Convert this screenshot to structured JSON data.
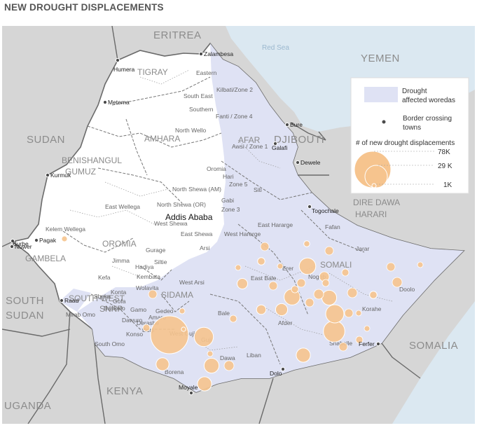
{
  "title": "NEW DROUGHT DISPLACEMENTS",
  "colors": {
    "land": "#d6d6d6",
    "sea": "#dbe8f1",
    "ethiopia": "#ffffff",
    "drought": "#dfe2f4",
    "bubble_fill": "#f6c48e",
    "bubble_stroke": "#ffffff",
    "border": "#6a6a6a"
  },
  "countries": [
    "ERITREA",
    "YEMEN",
    "SUDAN",
    "DJIBOUTI",
    "SOUTH",
    "SUDAN",
    "SOMALIA",
    "KENYA",
    "UGANDA"
  ],
  "sea_label": "Red Sea",
  "capital": "Addis Ababa",
  "regions": [
    "TIGRAY",
    "AMHARA",
    "AFAR",
    "BENISHANGUL",
    "GUMUZ",
    "OROMIA",
    "GAMBELA",
    "SNNP",
    "SIDAMA",
    "SOMALI",
    "DIRE DAWA",
    "HARARI",
    "SOUTH WEST"
  ],
  "zones": [
    "Eastern",
    "Kilbati/Zone 2",
    "South East",
    "Southern",
    "Fanti / Zone 4",
    "North Wello",
    "Awsi / Zone 1",
    "Oromia",
    "Hari",
    "Zone 5",
    "Siti",
    "North Shewa (AM)",
    "Gabi",
    "Zone 3",
    "East Wellega",
    "North Shewa (OR)",
    "West Shewa",
    "East Shewa",
    "West Harerge",
    "East Hararge",
    "Fafan",
    "Kelem Wellega",
    "Jarar",
    "Gurage",
    "Arsi",
    "Jimma",
    "Hadiya",
    "Siltie",
    "Erer",
    "Nogob",
    "Kefa",
    "Kembata",
    "West Arsi",
    "East Bale",
    "Doolo",
    "Konta",
    "Wolayita",
    "Sheka",
    "Gofa",
    "Basketo",
    "Gamo",
    "Gedeo",
    "Bale",
    "Korahe",
    "Mirab Omo",
    "Dawuro",
    "Derashe",
    "Burji",
    "Amaro",
    "Afder",
    "West Guji",
    "Guji",
    "Konso",
    "Shabelle",
    "South Omo",
    "Liban",
    "Dawa",
    "Borena"
  ],
  "towns": [
    "Zalambesa",
    "Humera",
    "Metema",
    "Bure",
    "Galafi",
    "Kurmuk",
    "Dewele",
    "Togochale",
    "Burbe",
    "Pagak",
    "Nuwer",
    "Raad",
    "Ferfer",
    "Dolo",
    "Moyale"
  ],
  "legend": {
    "drought_label_1": "Drought",
    "drought_label_2": "affected woredas",
    "border_label_1": "Border crossing",
    "border_label_2": "towns",
    "size_title": "# of new drought displacements",
    "size_values": [
      "78K",
      "29 K",
      "1K"
    ]
  },
  "bubbles": [
    {
      "zone": "West Guji",
      "value": 78000
    },
    {
      "zone": "Guji",
      "value": 20000
    },
    {
      "zone": "Dawa",
      "value": 12000
    },
    {
      "zone": "Borena",
      "value": 11000
    },
    {
      "zone": "Borena",
      "value": 9000
    },
    {
      "zone": "Shabelle",
      "value": 25000
    },
    {
      "zone": "Korahe",
      "value": 18000
    },
    {
      "zone": "Nogob",
      "value": 15000
    },
    {
      "zone": "Afder",
      "value": 14000
    },
    {
      "zone": "Jarar",
      "value": 12000
    },
    {
      "zone": "Liban",
      "value": 11000
    },
    {
      "zone": "Doolo",
      "value": 3000
    },
    {
      "zone": "Erer",
      "value": 3000
    },
    {
      "zone": "East Bale",
      "value": 6000
    },
    {
      "zone": "Bale",
      "value": 5000
    },
    {
      "zone": "Afder",
      "value": 8000
    },
    {
      "zone": "Fafan",
      "value": 2000
    },
    {
      "zone": "Other",
      "value": 1000
    }
  ]
}
